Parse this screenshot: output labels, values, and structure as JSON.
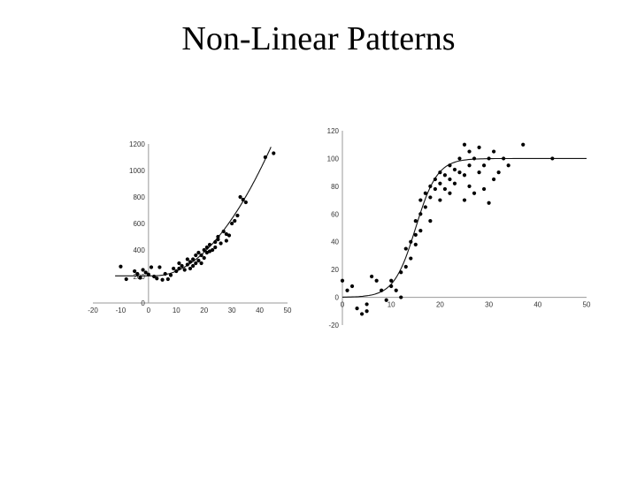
{
  "title": "Non-Linear Patterns",
  "chart_data": [
    {
      "type": "scatter",
      "title": "",
      "xlabel": "",
      "ylabel": "",
      "xlim": [
        -20,
        50
      ],
      "ylim": [
        0,
        1200
      ],
      "x_ticks": [
        "-20",
        "-10",
        "0",
        "10",
        "20",
        "30",
        "40",
        "50"
      ],
      "y_ticks": [
        "0",
        "200",
        "400",
        "600",
        "800",
        "1000",
        "1200"
      ],
      "x_tick_values": [
        -20,
        -10,
        0,
        10,
        20,
        30,
        40,
        50
      ],
      "y_tick_values": [
        0,
        200,
        400,
        600,
        800,
        1000,
        1200
      ],
      "trend": "quadratic",
      "points": [
        [
          -10,
          275
        ],
        [
          -8,
          180
        ],
        [
          -5,
          240
        ],
        [
          -4,
          220
        ],
        [
          -3,
          190
        ],
        [
          -2,
          250
        ],
        [
          -1,
          230
        ],
        [
          0,
          215
        ],
        [
          1,
          270
        ],
        [
          2,
          200
        ],
        [
          3,
          185
        ],
        [
          4,
          270
        ],
        [
          5,
          175
        ],
        [
          6,
          220
        ],
        [
          7,
          180
        ],
        [
          8,
          210
        ],
        [
          9,
          260
        ],
        [
          10,
          240
        ],
        [
          11,
          300
        ],
        [
          11,
          260
        ],
        [
          12,
          280
        ],
        [
          13,
          250
        ],
        [
          14,
          330
        ],
        [
          14,
          290
        ],
        [
          15,
          310
        ],
        [
          15,
          260
        ],
        [
          16,
          280
        ],
        [
          16,
          330
        ],
        [
          17,
          300
        ],
        [
          17,
          360
        ],
        [
          18,
          320
        ],
        [
          18,
          380
        ],
        [
          19,
          360
        ],
        [
          19,
          300
        ],
        [
          20,
          400
        ],
        [
          20,
          340
        ],
        [
          21,
          380
        ],
        [
          21,
          420
        ],
        [
          22,
          390
        ],
        [
          22,
          440
        ],
        [
          23,
          400
        ],
        [
          24,
          460
        ],
        [
          24,
          420
        ],
        [
          25,
          500
        ],
        [
          25,
          480
        ],
        [
          26,
          450
        ],
        [
          27,
          540
        ],
        [
          28,
          520
        ],
        [
          28,
          470
        ],
        [
          29,
          510
        ],
        [
          30,
          600
        ],
        [
          31,
          620
        ],
        [
          32,
          660
        ],
        [
          33,
          800
        ],
        [
          34,
          780
        ],
        [
          35,
          760
        ],
        [
          42,
          1100
        ],
        [
          45,
          1130
        ]
      ]
    },
    {
      "type": "scatter",
      "title": "",
      "xlabel": "",
      "ylabel": "",
      "xlim": [
        0,
        50
      ],
      "ylim": [
        -20,
        120
      ],
      "x_ticks": [
        "0",
        "10",
        "20",
        "30",
        "40",
        "50"
      ],
      "y_ticks": [
        "-20",
        "0",
        "20",
        "40",
        "60",
        "80",
        "100",
        "120"
      ],
      "x_tick_values": [
        0,
        10,
        20,
        30,
        40,
        50
      ],
      "y_tick_values": [
        -20,
        0,
        20,
        40,
        60,
        80,
        100,
        120
      ],
      "trend": "sigmoid",
      "points": [
        [
          0,
          12
        ],
        [
          1,
          5
        ],
        [
          2,
          8
        ],
        [
          3,
          -8
        ],
        [
          4,
          -12
        ],
        [
          5,
          -5
        ],
        [
          5,
          -10
        ],
        [
          6,
          15
        ],
        [
          7,
          12
        ],
        [
          8,
          5
        ],
        [
          9,
          -2
        ],
        [
          10,
          12
        ],
        [
          10,
          8
        ],
        [
          11,
          5
        ],
        [
          12,
          18
        ],
        [
          12,
          0
        ],
        [
          13,
          22
        ],
        [
          13,
          35
        ],
        [
          14,
          28
        ],
        [
          14,
          40
        ],
        [
          15,
          38
        ],
        [
          15,
          45
        ],
        [
          15,
          55
        ],
        [
          16,
          48
        ],
        [
          16,
          60
        ],
        [
          16,
          70
        ],
        [
          17,
          65
        ],
        [
          17,
          75
        ],
        [
          18,
          55
        ],
        [
          18,
          80
        ],
        [
          18,
          72
        ],
        [
          19,
          78
        ],
        [
          19,
          85
        ],
        [
          20,
          82
        ],
        [
          20,
          70
        ],
        [
          20,
          90
        ],
        [
          21,
          78
        ],
        [
          21,
          88
        ],
        [
          22,
          75
        ],
        [
          22,
          85
        ],
        [
          22,
          95
        ],
        [
          23,
          92
        ],
        [
          23,
          82
        ],
        [
          24,
          90
        ],
        [
          24,
          100
        ],
        [
          25,
          88
        ],
        [
          25,
          70
        ],
        [
          25,
          110
        ],
        [
          26,
          95
        ],
        [
          26,
          105
        ],
        [
          26,
          80
        ],
        [
          27,
          75
        ],
        [
          27,
          100
        ],
        [
          28,
          108
        ],
        [
          28,
          90
        ],
        [
          29,
          95
        ],
        [
          29,
          78
        ],
        [
          30,
          100
        ],
        [
          30,
          68
        ],
        [
          31,
          105
        ],
        [
          31,
          85
        ],
        [
          32,
          90
        ],
        [
          33,
          100
        ],
        [
          34,
          95
        ],
        [
          37,
          110
        ],
        [
          43,
          100
        ]
      ]
    }
  ]
}
